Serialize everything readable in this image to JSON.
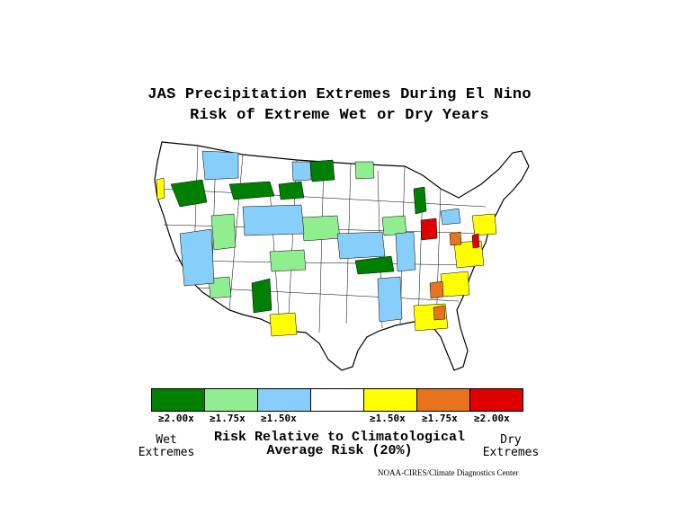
{
  "title_line1": "JAS Precipitation Extremes During El Nino",
  "title_line2": "Risk of Extreme Wet or Dry Years",
  "legend": {
    "bins": [
      {
        "label": "≥2.00x",
        "color": "#008000",
        "class": "wet",
        "ratio": 2.0
      },
      {
        "label": "≥1.75x",
        "color": "#90ee90",
        "class": "wet",
        "ratio": 1.75
      },
      {
        "label": "≥1.50x",
        "color": "#87cefa",
        "class": "wet",
        "ratio": 1.5
      },
      {
        "label": "",
        "color": "#ffffff",
        "class": "none",
        "ratio": null
      },
      {
        "label": "≥1.50x",
        "color": "#ffff00",
        "class": "dry",
        "ratio": 1.5
      },
      {
        "label": "≥1.75x",
        "color": "#e8731e",
        "class": "dry",
        "ratio": 1.75
      },
      {
        "label": "≥2.00x",
        "color": "#e00000",
        "class": "dry",
        "ratio": 2.0
      }
    ],
    "wet_label_1": "Wet",
    "wet_label_2": "Extremes",
    "dry_label_1": "Dry",
    "dry_label_2": "Extremes",
    "risk_line1": "Risk Relative to Climatological",
    "risk_line2": "Average Risk (20%)"
  },
  "credit": "NOAA-CIRES/Climate Diagnostics Center",
  "colors": {
    "wet2": "#008000",
    "wet175": "#90ee90",
    "wet15": "#87cefa",
    "dry15": "#ffff00",
    "dry175": "#e8731e",
    "dry2": "#e00000"
  }
}
